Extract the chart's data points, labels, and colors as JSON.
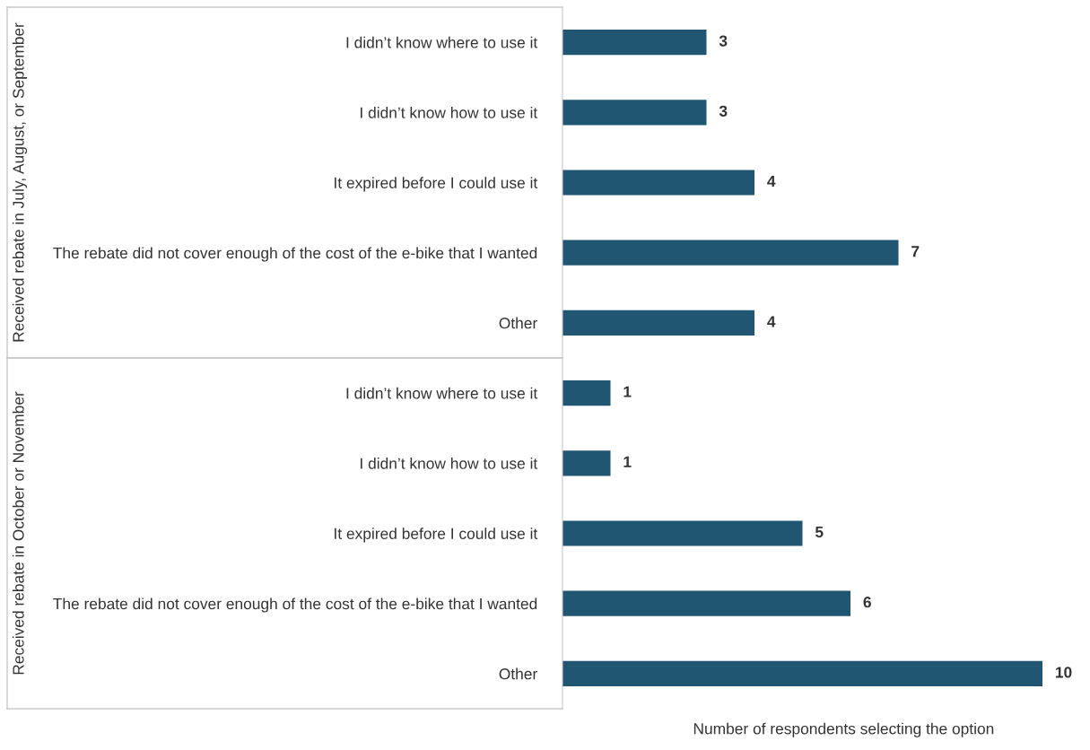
{
  "chart_data": {
    "type": "bar",
    "orientation": "horizontal",
    "xlabel": "Number of respondents selecting the option",
    "categories": [
      "I didn’t know where to use it",
      "I didn’t know how to use it",
      "It expired before I could use it",
      "The rebate did not cover enough of the cost of the e-bike that I wanted",
      "Other",
      "I didn’t know where to use it",
      "I didn’t know how to use it",
      "It expired before I could use it",
      "The rebate did not cover enough of the cost of the e-bike that I wanted",
      "Other"
    ],
    "values": [
      3,
      3,
      4,
      7,
      4,
      1,
      1,
      5,
      6,
      10
    ],
    "color": "#215673",
    "data_labels": true,
    "tick_labels": "y",
    "grid": false,
    "legend": false,
    "annotations": [
      "Received rebate in July, August, or September",
      "Received rebate in October or November"
    ]
  }
}
